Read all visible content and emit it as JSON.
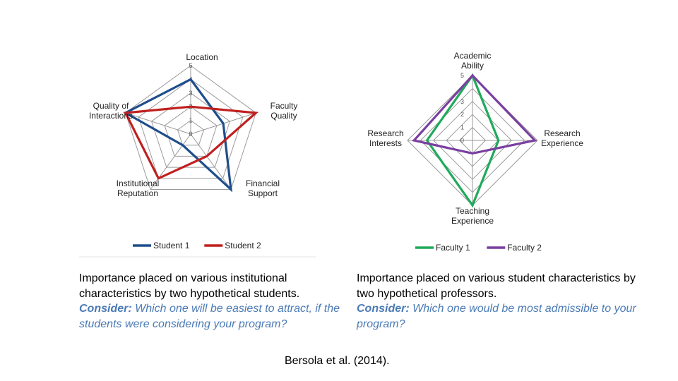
{
  "chart_data": [
    {
      "type": "radar",
      "axes": [
        "Location",
        "Faculty Quality",
        "Financial Support",
        "Institutional Reputation",
        "Quality of Interactions"
      ],
      "axis_label_lines": [
        [
          "Location"
        ],
        [
          "Faculty",
          "Quality"
        ],
        [
          "Financial",
          "Support"
        ],
        [
          "Institutional",
          "Reputation"
        ],
        [
          "Quality of",
          "Interactions"
        ]
      ],
      "scale": [
        0,
        5
      ],
      "ticks": [
        "0",
        "1",
        "2",
        "3",
        "4",
        "5"
      ],
      "series": [
        {
          "name": "Student 1",
          "color": "#1f4e8c",
          "values": [
            4,
            2.5,
            5,
            1,
            5
          ]
        },
        {
          "name": "Student 2",
          "color": "#c0201f",
          "values": [
            2,
            5,
            2,
            4,
            5
          ]
        }
      ]
    },
    {
      "type": "radar",
      "axes": [
        "Academic Ability",
        "Research Experience",
        "Teaching Experience",
        "Research Interests"
      ],
      "axis_label_lines": [
        [
          "Academic",
          "Ability"
        ],
        [
          "Research",
          "Experience"
        ],
        [
          "Teaching",
          "Experience"
        ],
        [
          "Research",
          "Interests"
        ]
      ],
      "scale": [
        0,
        5
      ],
      "ticks": [
        "0",
        "1",
        "2",
        "3",
        "4",
        "5"
      ],
      "series": [
        {
          "name": "Faculty 1",
          "color": "#1faa5a",
          "values": [
            5,
            2,
            5,
            3.5
          ]
        },
        {
          "name": "Faculty 2",
          "color": "#7a3fa0",
          "values": [
            5,
            4.8,
            1,
            4.5
          ]
        }
      ]
    }
  ],
  "captions": {
    "left": {
      "text": "Importance placed on various institutional characteristics by two hypothetical students.",
      "consider_label": "Consider:",
      "consider_text": " Which one will be easiest to attract, if the students were considering your program?"
    },
    "right": {
      "text": "Importance placed on various student characteristics by two hypothetical professors.",
      "consider_label": "Consider:",
      "consider_text": " Which one would be most admissible to your program?"
    }
  },
  "citation": "Bersola et al. (2014)."
}
